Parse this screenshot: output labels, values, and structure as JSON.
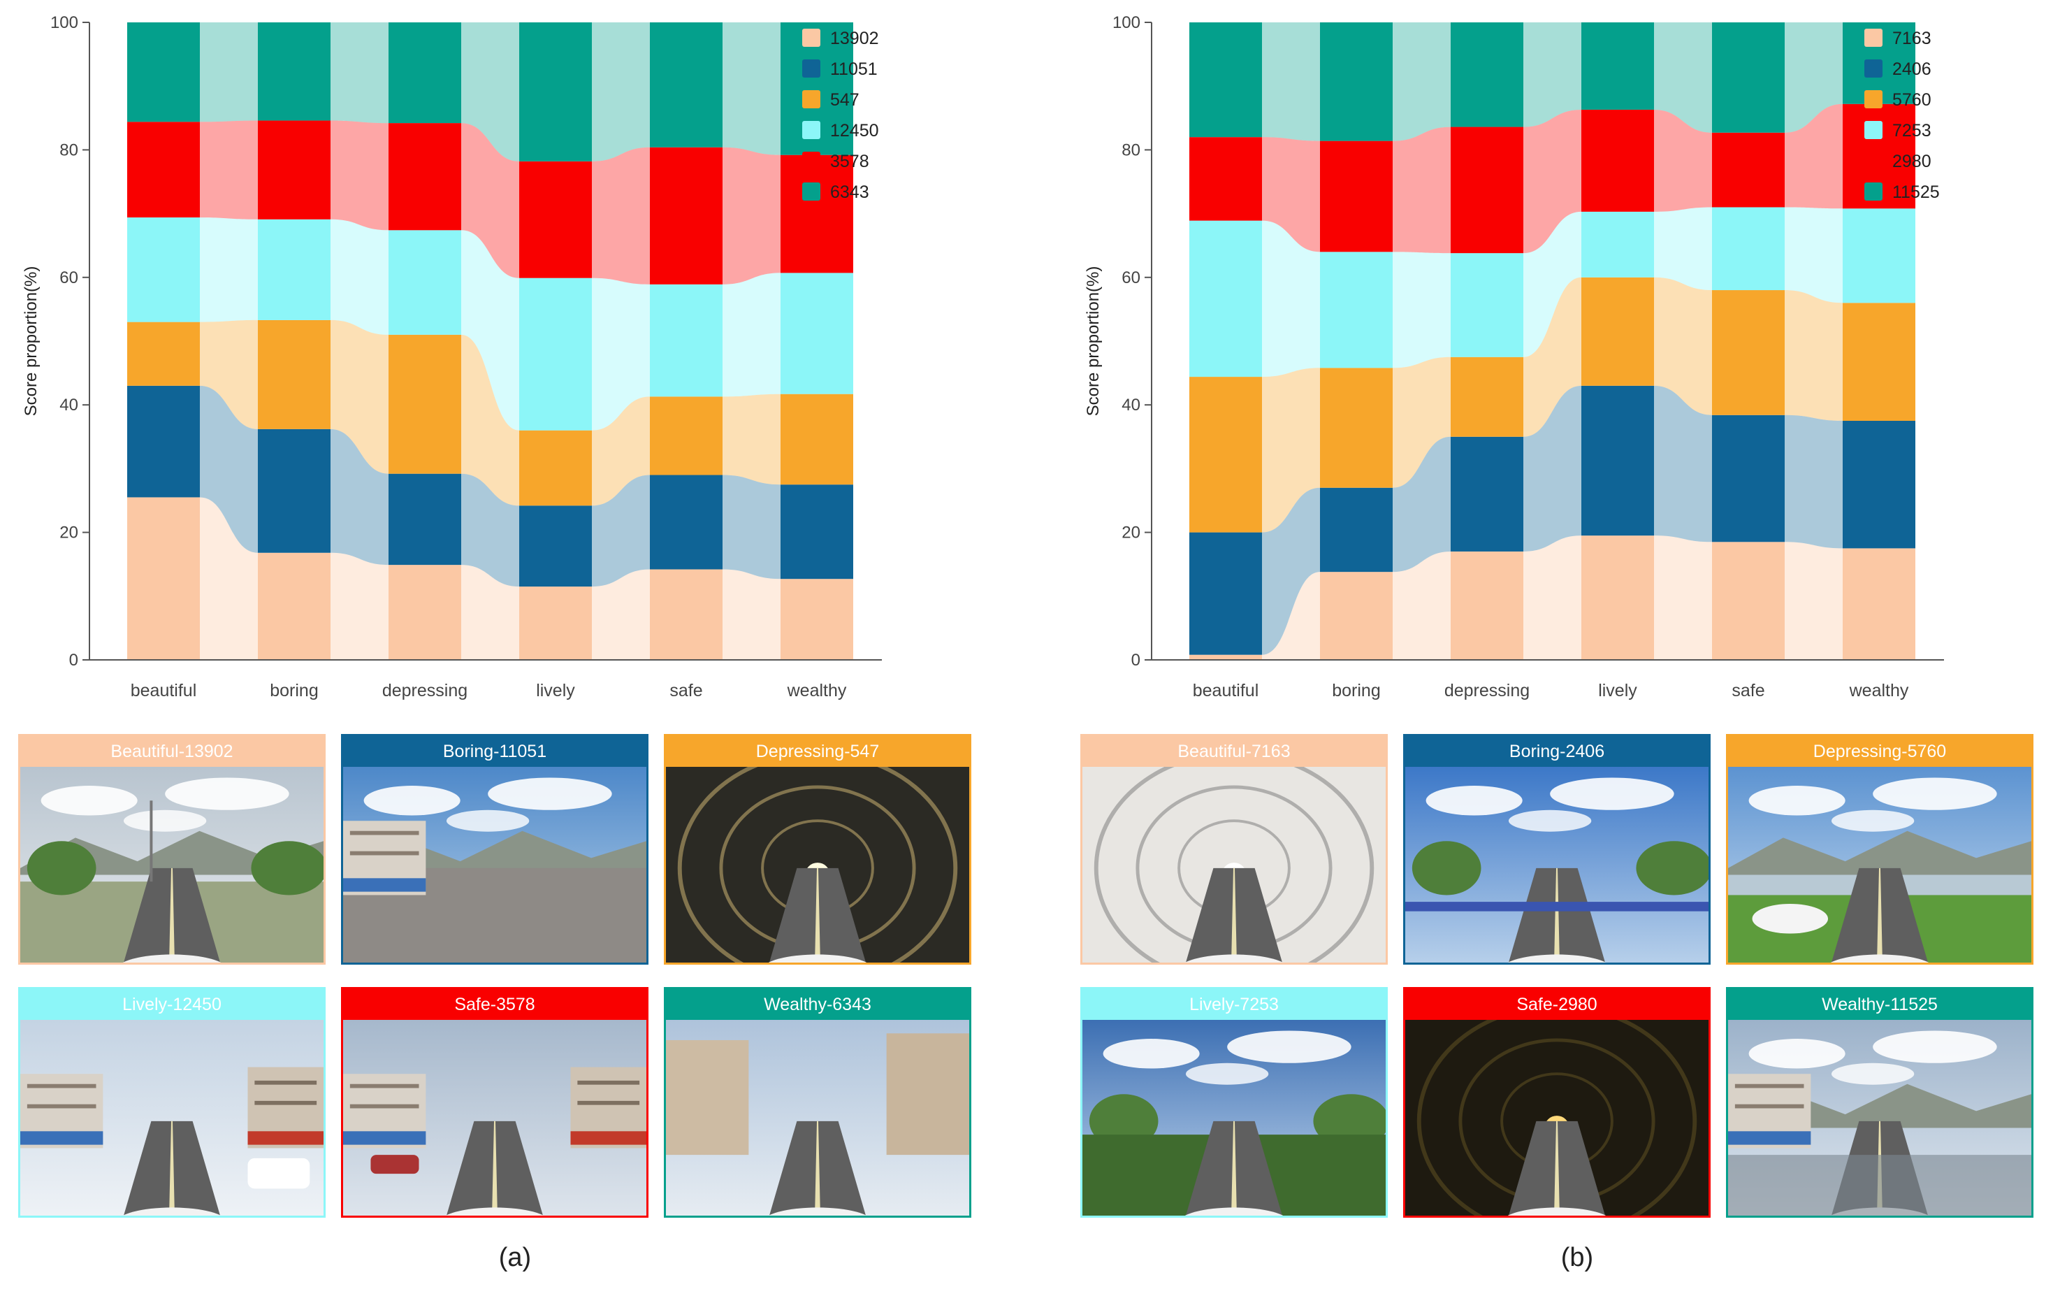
{
  "chart_data": [
    {
      "id": "a",
      "type": "bar",
      "stacked": true,
      "flow_bands": true,
      "title": "",
      "xlabel": "",
      "ylabel": "Score proportion(%)",
      "ylim": [
        0,
        100
      ],
      "yticks": [
        "0",
        "20",
        "40",
        "60",
        "80",
        "100"
      ],
      "categories": [
        "beautiful",
        "boring",
        "depressing",
        "lively",
        "safe",
        "wealthy"
      ],
      "legend_position": "top-right",
      "series": [
        {
          "name": "13902",
          "color": "#FBC8A4",
          "values": [
            25.5,
            16.8,
            14.9,
            11.5,
            14.2,
            12.7
          ]
        },
        {
          "name": "11051",
          "color": "#0F6496",
          "values": [
            17.5,
            19.4,
            14.3,
            12.7,
            14.8,
            14.8
          ]
        },
        {
          "name": "547",
          "color": "#F7A62B",
          "values": [
            10.0,
            17.1,
            21.8,
            11.8,
            12.3,
            14.2
          ]
        },
        {
          "name": "12450",
          "color": "#8CF6F8",
          "values": [
            16.4,
            15.8,
            16.4,
            23.9,
            17.6,
            19.0
          ]
        },
        {
          "name": "3578",
          "color": "#F90000",
          "values": [
            15.0,
            15.5,
            16.8,
            18.3,
            21.5,
            18.5
          ]
        },
        {
          "name": "6343",
          "color": "#04A08C",
          "values": [
            15.6,
            15.4,
            15.8,
            21.8,
            19.6,
            20.8
          ]
        }
      ]
    },
    {
      "id": "b",
      "type": "bar",
      "stacked": true,
      "flow_bands": true,
      "title": "",
      "xlabel": "",
      "ylabel": "Score proportion(%)",
      "ylim": [
        0,
        100
      ],
      "yticks": [
        "0",
        "20",
        "40",
        "60",
        "80",
        "100"
      ],
      "categories": [
        "beautiful",
        "boring",
        "depressing",
        "lively",
        "safe",
        "wealthy"
      ],
      "legend_position": "top-right",
      "series": [
        {
          "name": "7163",
          "color": "#FBC8A4",
          "values": [
            0.8,
            13.8,
            17.0,
            19.5,
            18.5,
            17.5
          ]
        },
        {
          "name": "2406",
          "color": "#0F6496",
          "values": [
            19.2,
            13.2,
            18.0,
            23.5,
            19.9,
            20.0
          ]
        },
        {
          "name": "5760",
          "color": "#F7A62B",
          "values": [
            24.4,
            18.8,
            12.5,
            17.0,
            19.6,
            18.5
          ]
        },
        {
          "name": "7253",
          "color": "#8CF6F8",
          "values": [
            24.5,
            18.2,
            16.3,
            10.3,
            13.0,
            14.8
          ]
        },
        {
          "name": "2980",
          "color": "#F90000",
          "values": [
            13.1,
            17.4,
            19.8,
            16.0,
            11.7,
            16.4
          ]
        },
        {
          "name": "11525",
          "color": "#04A08C",
          "values": [
            18.0,
            18.6,
            16.4,
            13.7,
            17.3,
            12.8
          ]
        }
      ]
    }
  ],
  "panels": [
    {
      "label": "(a)",
      "cards": [
        {
          "title": "Beautiful-13902",
          "color": "#FBC8A4",
          "scene": "road-street-lights"
        },
        {
          "title": "Boring-11051",
          "color": "#0F6496",
          "scene": "empty-lot-clouds"
        },
        {
          "title": "Depressing-547",
          "color": "#F7A62B",
          "scene": "dark-tunnel"
        },
        {
          "title": "Lively-12450",
          "color": "#8CF6F8",
          "scene": "busy-street"
        },
        {
          "title": "Safe-3578",
          "color": "#F90000",
          "scene": "shop-street"
        },
        {
          "title": "Wealthy-6343",
          "color": "#04A08C",
          "scene": "apartment-street"
        }
      ]
    },
    {
      "label": "(b)",
      "cards": [
        {
          "title": "Beautiful-7163",
          "color": "#FBC8A4",
          "scene": "bright-tunnel"
        },
        {
          "title": "Boring-2406",
          "color": "#0F6496",
          "scene": "town-street"
        },
        {
          "title": "Depressing-5760",
          "color": "#F7A62B",
          "scene": "river-road"
        },
        {
          "title": "Lively-7253",
          "color": "#8CF6F8",
          "scene": "tree-road"
        },
        {
          "title": "Safe-2980",
          "color": "#F90000",
          "scene": "night-tunnel"
        },
        {
          "title": "Wealthy-11525",
          "color": "#04A08C",
          "scene": "wet-road"
        }
      ]
    }
  ]
}
